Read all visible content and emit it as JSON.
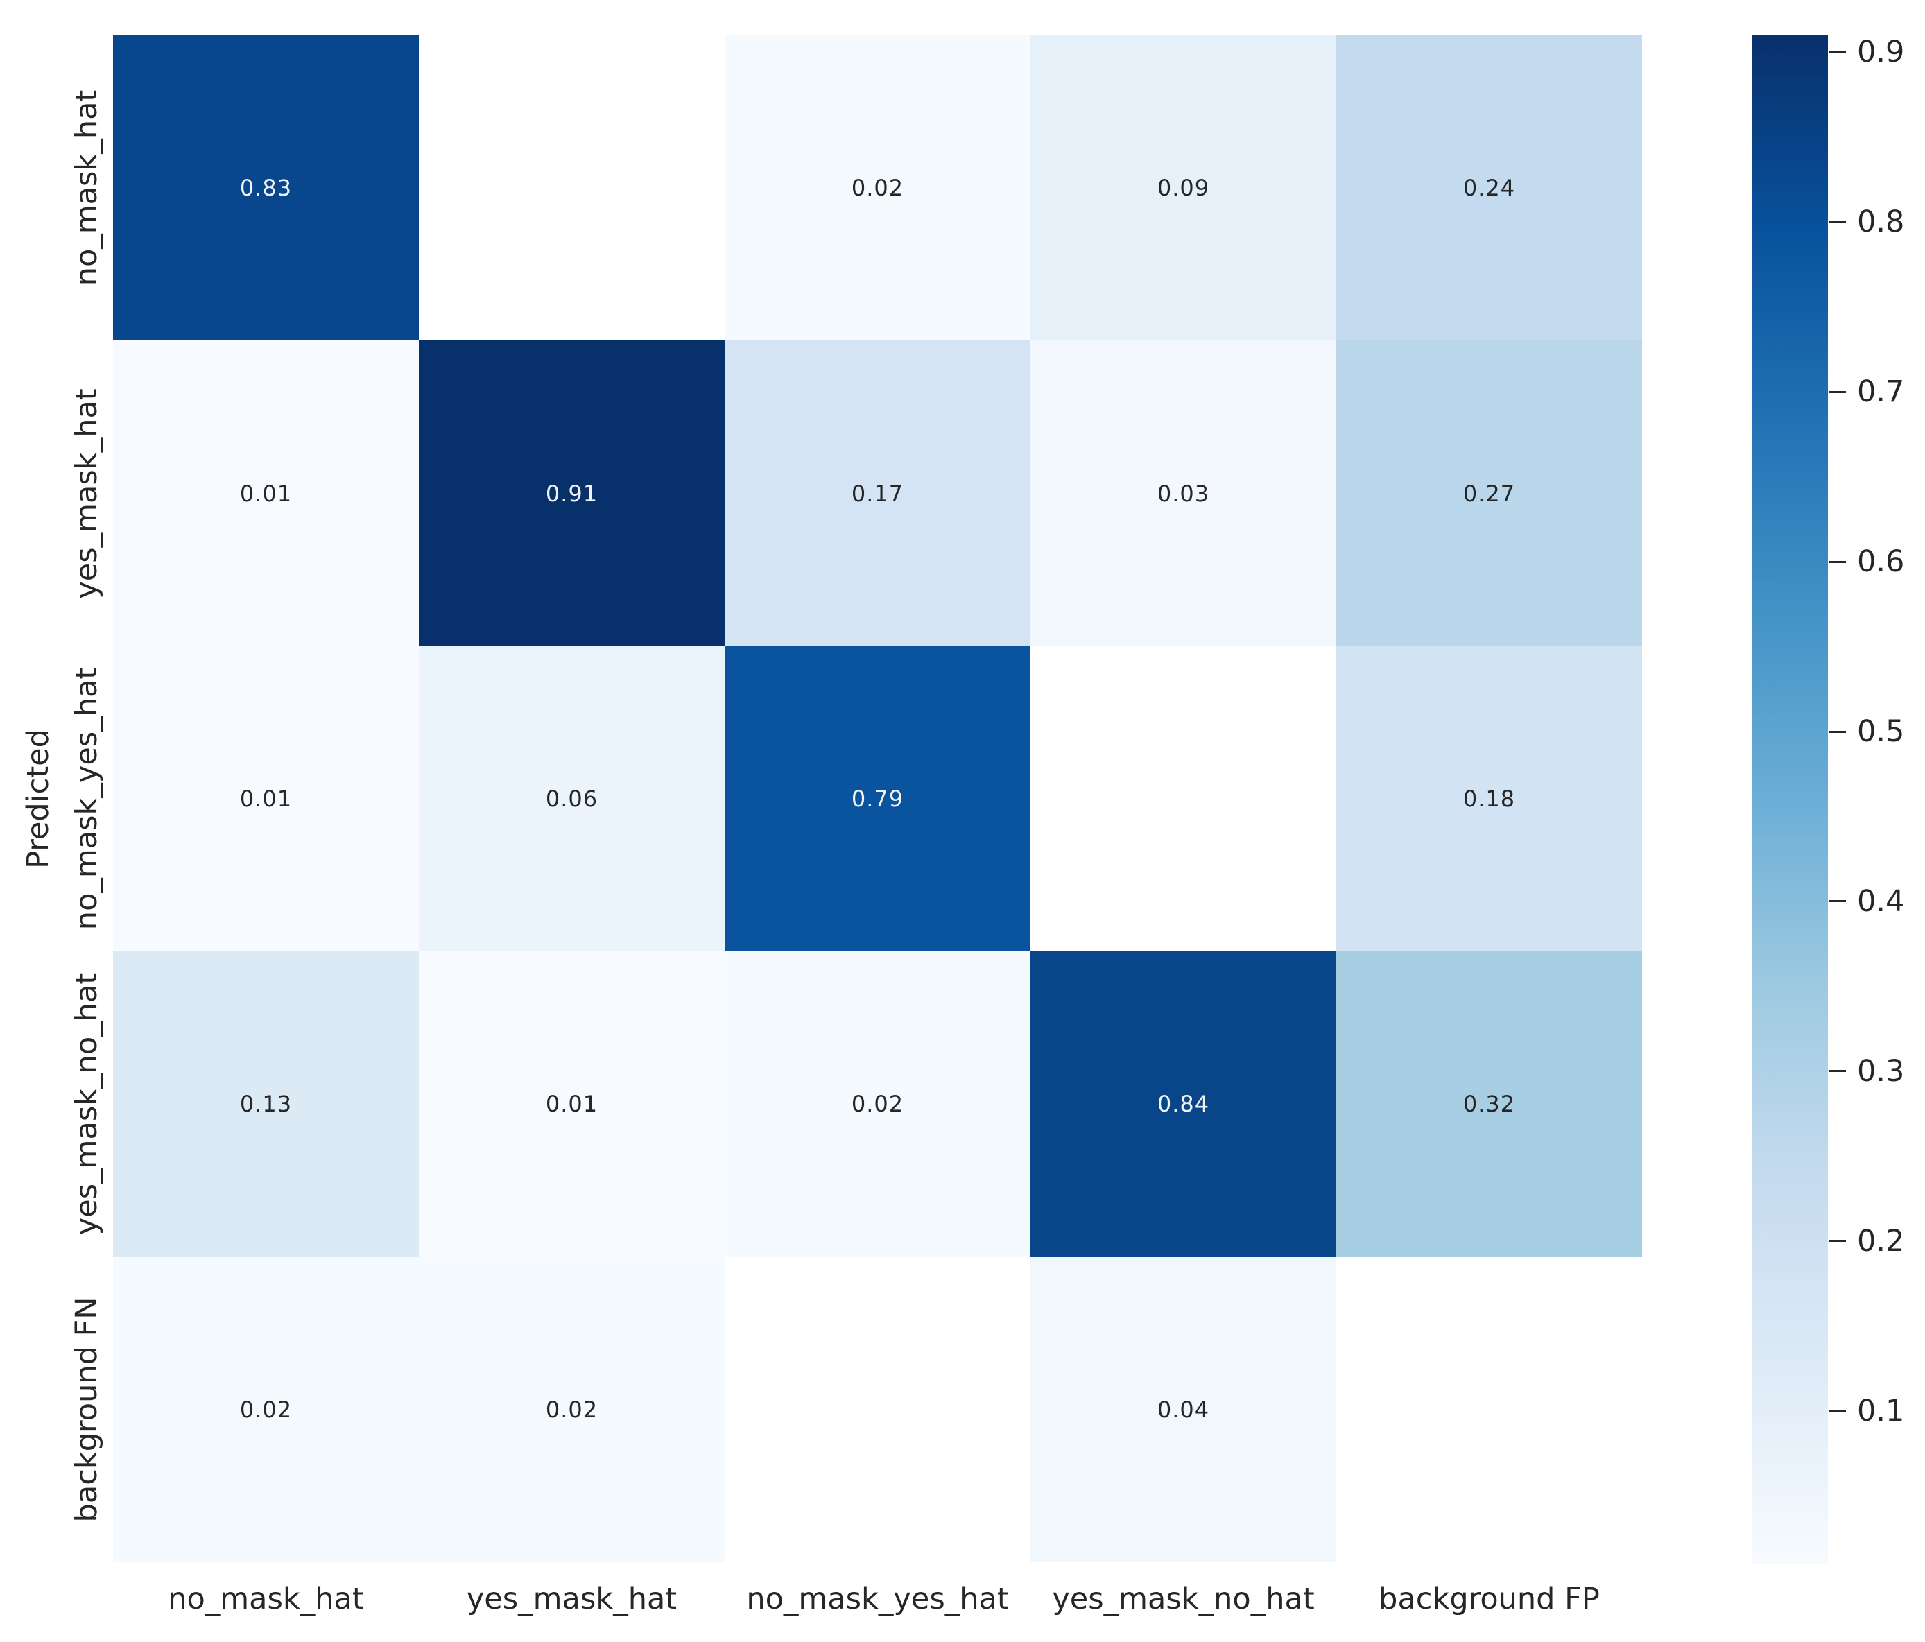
{
  "chart_data": {
    "type": "heatmap",
    "title": "",
    "xlabel": "",
    "ylabel": "Predicted",
    "col_labels": [
      "no_mask_hat",
      "yes_mask_hat",
      "no_mask_yes_hat",
      "yes_mask_no_hat",
      "background FP"
    ],
    "row_labels": [
      "no_mask_hat",
      "yes_mask_hat",
      "no_mask_yes_hat",
      "yes_mask_no_hat",
      "background FN"
    ],
    "matrix": [
      [
        0.83,
        null,
        0.02,
        0.09,
        0.24
      ],
      [
        0.01,
        0.91,
        0.17,
        0.03,
        0.27
      ],
      [
        0.01,
        0.06,
        0.79,
        null,
        0.18
      ],
      [
        0.13,
        0.01,
        0.02,
        0.84,
        0.32
      ],
      [
        0.02,
        0.02,
        null,
        0.04,
        null
      ]
    ],
    "colormap": "Blues",
    "colormap_stops": [
      "#f7fbff",
      "#deebf7",
      "#c6dbef",
      "#9ecae1",
      "#6baed6",
      "#4292c6",
      "#2171b5",
      "#08519c",
      "#08306b"
    ],
    "vmin": 0.01,
    "vmax": 0.91,
    "empty_cell_color": "#ffffff",
    "annotation_dark_color": "#262626",
    "annotation_light_color": "#f2f2f2",
    "legend_position": "right",
    "grid": false,
    "colorbar_ticks": [
      "0.9",
      "0.8",
      "0.7",
      "0.6",
      "0.5",
      "0.4",
      "0.3",
      "0.2",
      "0.1"
    ]
  }
}
